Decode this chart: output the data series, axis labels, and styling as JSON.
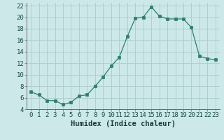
{
  "x": [
    0,
    1,
    2,
    3,
    4,
    5,
    6,
    7,
    8,
    9,
    10,
    11,
    12,
    13,
    14,
    15,
    16,
    17,
    18,
    19,
    20,
    21,
    22,
    23
  ],
  "y": [
    7.0,
    6.5,
    5.5,
    5.5,
    4.8,
    5.2,
    6.3,
    6.5,
    8.0,
    9.6,
    11.5,
    13.0,
    16.6,
    19.8,
    20.0,
    21.8,
    20.2,
    19.7,
    19.7,
    19.7,
    18.2,
    13.2,
    12.8,
    12.6
  ],
  "xlabel": "Humidex (Indice chaleur)",
  "xlim": [
    -0.5,
    23.5
  ],
  "ylim": [
    4,
    22.5
  ],
  "yticks": [
    4,
    6,
    8,
    10,
    12,
    14,
    16,
    18,
    20,
    22
  ],
  "xticks": [
    0,
    1,
    2,
    3,
    4,
    5,
    6,
    7,
    8,
    9,
    10,
    11,
    12,
    13,
    14,
    15,
    16,
    17,
    18,
    19,
    20,
    21,
    22,
    23
  ],
  "line_color": "#2e7d6e",
  "marker": "s",
  "marker_size": 2.5,
  "bg_color": "#cce8e8",
  "grid_color": "#aacccc",
  "xlabel_fontsize": 7.5,
  "tick_fontsize": 6.5
}
